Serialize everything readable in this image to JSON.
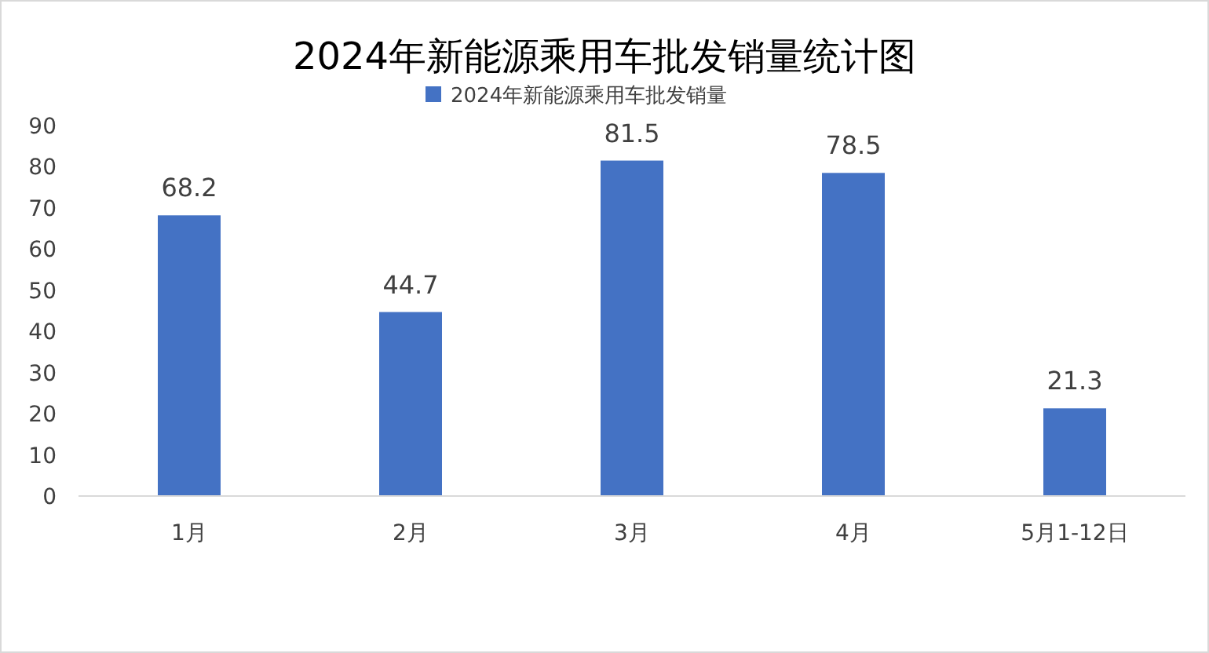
{
  "chart_data": {
    "type": "bar",
    "title": "2024年新能源乘用车批发销量统计图",
    "categories": [
      "1月",
      "2月",
      "3月",
      "4月",
      "5月1-12日"
    ],
    "series": [
      {
        "name": "2024年新能源乘用车批发销量",
        "color": "#4472c4",
        "values": [
          68.2,
          44.7,
          81.5,
          78.5,
          21.3
        ]
      }
    ],
    "ylim": [
      0,
      90
    ],
    "yticks": [
      0,
      10,
      20,
      30,
      40,
      50,
      60,
      70,
      80,
      90
    ],
    "grid": false,
    "legend": "top",
    "data_labels": true
  }
}
